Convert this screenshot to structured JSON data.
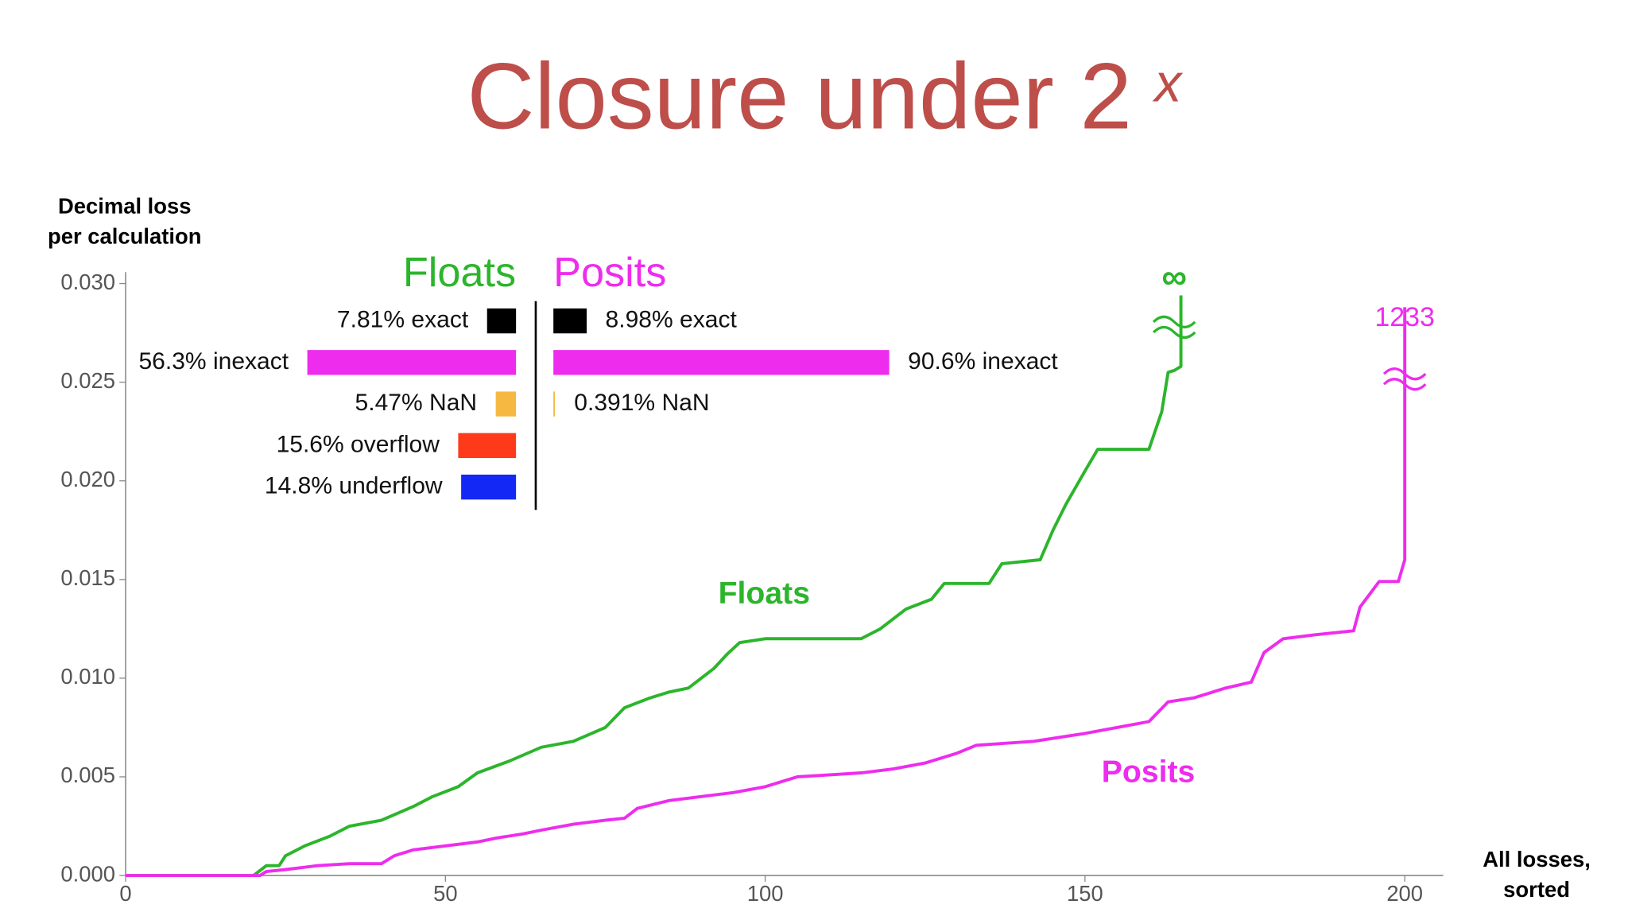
{
  "chart_data": {
    "type": "line",
    "title": "Closure under 2",
    "title_exponent": "x",
    "y_label": [
      "Decimal loss",
      "per calculation"
    ],
    "x_label": [
      "All losses,",
      "sorted"
    ],
    "xlim": [
      0,
      200
    ],
    "ylim": [
      0,
      0.03
    ],
    "xticks": [
      0,
      50,
      100,
      150,
      200
    ],
    "yticks": [
      {
        "value": 0,
        "label": "0.000"
      },
      {
        "value": 0.005,
        "label": "0.005"
      },
      {
        "value": 0.01,
        "label": "0.010"
      },
      {
        "value": 0.015,
        "label": "0.015"
      },
      {
        "value": 0.02,
        "label": "0.020"
      },
      {
        "value": 0.025,
        "label": "0.025"
      },
      {
        "value": 0.03,
        "label": "0.030"
      }
    ],
    "series": [
      {
        "name": "Floats",
        "color": "#2cb52c",
        "x": [
          0,
          20,
          22,
          24,
          25,
          28,
          32,
          35,
          40,
          45,
          48,
          52,
          55,
          60,
          65,
          70,
          75,
          78,
          82,
          85,
          88,
          92,
          94,
          96,
          100,
          115,
          118,
          122,
          126,
          128,
          135,
          137,
          143,
          145,
          147,
          150,
          152,
          160,
          162,
          163,
          164,
          165,
          165
        ],
        "values": [
          0,
          0,
          0.0005,
          0.0005,
          0.001,
          0.0015,
          0.002,
          0.0025,
          0.0028,
          0.0035,
          0.004,
          0.0045,
          0.0052,
          0.0058,
          0.0065,
          0.0068,
          0.0075,
          0.0085,
          0.009,
          0.0093,
          0.0095,
          0.0105,
          0.0112,
          0.0118,
          0.012,
          0.012,
          0.0125,
          0.0135,
          0.014,
          0.0148,
          0.0148,
          0.0158,
          0.016,
          0.0175,
          0.0188,
          0.0205,
          0.0216,
          0.0216,
          0.0235,
          0.0255,
          0.0256,
          0.0258,
          0.0294
        ]
      },
      {
        "name": "Posits",
        "color": "#ee2cee",
        "x": [
          0,
          21,
          22,
          25,
          30,
          35,
          40,
          42,
          45,
          50,
          55,
          58,
          62,
          65,
          70,
          75,
          78,
          80,
          85,
          90,
          95,
          100,
          105,
          115,
          120,
          125,
          130,
          133,
          142,
          146,
          150,
          155,
          160,
          163,
          167,
          172,
          176,
          178,
          181,
          186,
          192,
          193,
          196,
          199,
          200,
          200
        ],
        "values": [
          0,
          0,
          0.0002,
          0.0003,
          0.0005,
          0.0006,
          0.0006,
          0.001,
          0.0013,
          0.0015,
          0.0017,
          0.0019,
          0.0021,
          0.0023,
          0.0026,
          0.0028,
          0.0029,
          0.0034,
          0.0038,
          0.004,
          0.0042,
          0.0045,
          0.005,
          0.0052,
          0.0054,
          0.0057,
          0.0062,
          0.0066,
          0.0068,
          0.007,
          0.0072,
          0.0075,
          0.0078,
          0.0088,
          0.009,
          0.0095,
          0.0098,
          0.0113,
          0.012,
          0.0122,
          0.0124,
          0.0136,
          0.0149,
          0.0149,
          0.016,
          0.0288
        ]
      }
    ],
    "annotations": [
      "∞",
      "1233"
    ],
    "breakdown": [
      {
        "name": "Floats",
        "color": "#2cb52c",
        "items": [
          {
            "label": "7.81% exact",
            "value": 7.81,
            "color": "#000000"
          },
          {
            "label": "56.3% inexact",
            "value": 56.3,
            "color": "#ee2cee"
          },
          {
            "label": "5.47% NaN",
            "value": 5.47,
            "color": "#f5b942"
          },
          {
            "label": "15.6% overflow",
            "value": 15.6,
            "color": "#ff3a1a"
          },
          {
            "label": "14.8% underflow",
            "value": 14.8,
            "color": "#1428f5"
          }
        ]
      },
      {
        "name": "Posits",
        "color": "#ee2cee",
        "items": [
          {
            "label": "8.98% exact",
            "value": 8.98,
            "color": "#000000"
          },
          {
            "label": "90.6% inexact",
            "value": 90.6,
            "color": "#ee2cee"
          },
          {
            "label": "0.391% NaN",
            "value": 0.391,
            "color": "#f5b942"
          }
        ]
      }
    ]
  }
}
